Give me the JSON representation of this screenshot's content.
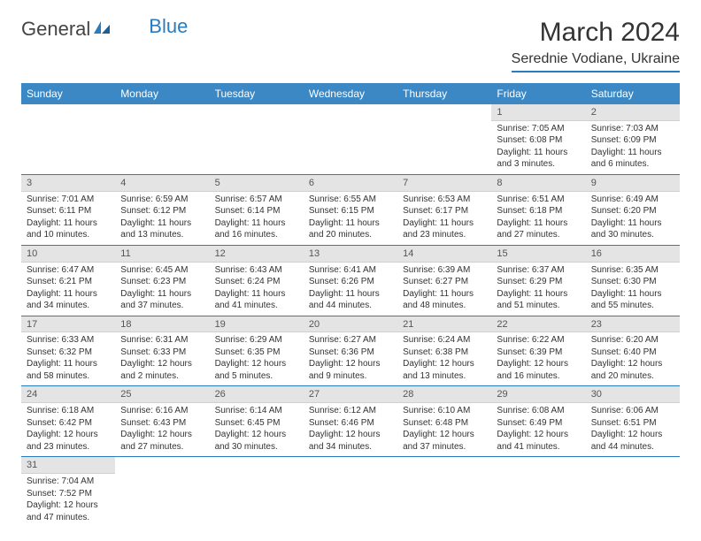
{
  "logo": {
    "text1": "General",
    "text2": "Blue"
  },
  "title": "March 2024",
  "location": "Serednie Vodiane, Ukraine",
  "colors": {
    "header_bg": "#3b88c4",
    "accent": "#2b7bbf",
    "daynum_bg": "#e4e4e4",
    "text": "#333333"
  },
  "dayHeaders": [
    "Sunday",
    "Monday",
    "Tuesday",
    "Wednesday",
    "Thursday",
    "Friday",
    "Saturday"
  ],
  "weeks": [
    [
      null,
      null,
      null,
      null,
      null,
      {
        "n": "1",
        "sr": "Sunrise: 7:05 AM",
        "ss": "Sunset: 6:08 PM",
        "dl": "Daylight: 11 hours and 3 minutes."
      },
      {
        "n": "2",
        "sr": "Sunrise: 7:03 AM",
        "ss": "Sunset: 6:09 PM",
        "dl": "Daylight: 11 hours and 6 minutes."
      }
    ],
    [
      {
        "n": "3",
        "sr": "Sunrise: 7:01 AM",
        "ss": "Sunset: 6:11 PM",
        "dl": "Daylight: 11 hours and 10 minutes."
      },
      {
        "n": "4",
        "sr": "Sunrise: 6:59 AM",
        "ss": "Sunset: 6:12 PM",
        "dl": "Daylight: 11 hours and 13 minutes."
      },
      {
        "n": "5",
        "sr": "Sunrise: 6:57 AM",
        "ss": "Sunset: 6:14 PM",
        "dl": "Daylight: 11 hours and 16 minutes."
      },
      {
        "n": "6",
        "sr": "Sunrise: 6:55 AM",
        "ss": "Sunset: 6:15 PM",
        "dl": "Daylight: 11 hours and 20 minutes."
      },
      {
        "n": "7",
        "sr": "Sunrise: 6:53 AM",
        "ss": "Sunset: 6:17 PM",
        "dl": "Daylight: 11 hours and 23 minutes."
      },
      {
        "n": "8",
        "sr": "Sunrise: 6:51 AM",
        "ss": "Sunset: 6:18 PM",
        "dl": "Daylight: 11 hours and 27 minutes."
      },
      {
        "n": "9",
        "sr": "Sunrise: 6:49 AM",
        "ss": "Sunset: 6:20 PM",
        "dl": "Daylight: 11 hours and 30 minutes."
      }
    ],
    [
      {
        "n": "10",
        "sr": "Sunrise: 6:47 AM",
        "ss": "Sunset: 6:21 PM",
        "dl": "Daylight: 11 hours and 34 minutes."
      },
      {
        "n": "11",
        "sr": "Sunrise: 6:45 AM",
        "ss": "Sunset: 6:23 PM",
        "dl": "Daylight: 11 hours and 37 minutes."
      },
      {
        "n": "12",
        "sr": "Sunrise: 6:43 AM",
        "ss": "Sunset: 6:24 PM",
        "dl": "Daylight: 11 hours and 41 minutes."
      },
      {
        "n": "13",
        "sr": "Sunrise: 6:41 AM",
        "ss": "Sunset: 6:26 PM",
        "dl": "Daylight: 11 hours and 44 minutes."
      },
      {
        "n": "14",
        "sr": "Sunrise: 6:39 AM",
        "ss": "Sunset: 6:27 PM",
        "dl": "Daylight: 11 hours and 48 minutes."
      },
      {
        "n": "15",
        "sr": "Sunrise: 6:37 AM",
        "ss": "Sunset: 6:29 PM",
        "dl": "Daylight: 11 hours and 51 minutes."
      },
      {
        "n": "16",
        "sr": "Sunrise: 6:35 AM",
        "ss": "Sunset: 6:30 PM",
        "dl": "Daylight: 11 hours and 55 minutes."
      }
    ],
    [
      {
        "n": "17",
        "sr": "Sunrise: 6:33 AM",
        "ss": "Sunset: 6:32 PM",
        "dl": "Daylight: 11 hours and 58 minutes."
      },
      {
        "n": "18",
        "sr": "Sunrise: 6:31 AM",
        "ss": "Sunset: 6:33 PM",
        "dl": "Daylight: 12 hours and 2 minutes."
      },
      {
        "n": "19",
        "sr": "Sunrise: 6:29 AM",
        "ss": "Sunset: 6:35 PM",
        "dl": "Daylight: 12 hours and 5 minutes."
      },
      {
        "n": "20",
        "sr": "Sunrise: 6:27 AM",
        "ss": "Sunset: 6:36 PM",
        "dl": "Daylight: 12 hours and 9 minutes."
      },
      {
        "n": "21",
        "sr": "Sunrise: 6:24 AM",
        "ss": "Sunset: 6:38 PM",
        "dl": "Daylight: 12 hours and 13 minutes."
      },
      {
        "n": "22",
        "sr": "Sunrise: 6:22 AM",
        "ss": "Sunset: 6:39 PM",
        "dl": "Daylight: 12 hours and 16 minutes."
      },
      {
        "n": "23",
        "sr": "Sunrise: 6:20 AM",
        "ss": "Sunset: 6:40 PM",
        "dl": "Daylight: 12 hours and 20 minutes."
      }
    ],
    [
      {
        "n": "24",
        "sr": "Sunrise: 6:18 AM",
        "ss": "Sunset: 6:42 PM",
        "dl": "Daylight: 12 hours and 23 minutes."
      },
      {
        "n": "25",
        "sr": "Sunrise: 6:16 AM",
        "ss": "Sunset: 6:43 PM",
        "dl": "Daylight: 12 hours and 27 minutes."
      },
      {
        "n": "26",
        "sr": "Sunrise: 6:14 AM",
        "ss": "Sunset: 6:45 PM",
        "dl": "Daylight: 12 hours and 30 minutes."
      },
      {
        "n": "27",
        "sr": "Sunrise: 6:12 AM",
        "ss": "Sunset: 6:46 PM",
        "dl": "Daylight: 12 hours and 34 minutes."
      },
      {
        "n": "28",
        "sr": "Sunrise: 6:10 AM",
        "ss": "Sunset: 6:48 PM",
        "dl": "Daylight: 12 hours and 37 minutes."
      },
      {
        "n": "29",
        "sr": "Sunrise: 6:08 AM",
        "ss": "Sunset: 6:49 PM",
        "dl": "Daylight: 12 hours and 41 minutes."
      },
      {
        "n": "30",
        "sr": "Sunrise: 6:06 AM",
        "ss": "Sunset: 6:51 PM",
        "dl": "Daylight: 12 hours and 44 minutes."
      }
    ],
    [
      {
        "n": "31",
        "sr": "Sunrise: 7:04 AM",
        "ss": "Sunset: 7:52 PM",
        "dl": "Daylight: 12 hours and 47 minutes."
      },
      null,
      null,
      null,
      null,
      null,
      null
    ]
  ]
}
